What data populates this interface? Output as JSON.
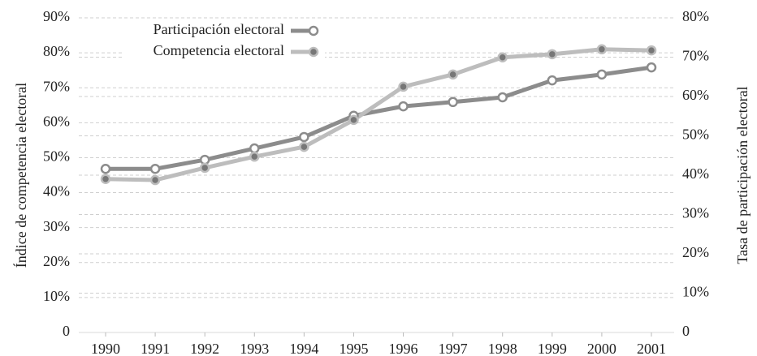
{
  "chart_data": {
    "type": "line",
    "ylabel": "Índice de competencia electoral",
    "y2label": "Tasa de participación electoral",
    "categories": [
      "1990",
      "1991",
      "1992",
      "1993",
      "1994",
      "1995",
      "1996",
      "1997",
      "1998",
      "1999",
      "2000",
      "2001"
    ],
    "series": [
      {
        "name": "Participación electoral",
        "color": "#8c8c8c",
        "marker": "open",
        "axis": "y2",
        "values": [
          41.6,
          41.6,
          43.9,
          46.8,
          49.7,
          55.1,
          57.5,
          58.6,
          59.8,
          64.1,
          65.6,
          67.4
        ]
      },
      {
        "name": "Competencia electoral",
        "color": "#bdbdbd",
        "marker": "filled",
        "axis": "y",
        "values": [
          43.9,
          43.6,
          47.1,
          50.3,
          53.1,
          60.8,
          70.3,
          73.8,
          78.7,
          79.6,
          81.0,
          80.7
        ]
      }
    ],
    "ylim": [
      0,
      90
    ],
    "yticks": [
      0,
      {
        "value": 10,
        "label": "10%"
      },
      {
        "value": 20,
        "label": "20%"
      },
      {
        "value": 30,
        "label": "30%"
      },
      {
        "value": 40,
        "label": "40%"
      },
      {
        "value": 50,
        "label": "50%"
      },
      {
        "value": 60,
        "label": "60%"
      },
      {
        "value": 70,
        "label": "70%"
      },
      {
        "value": 80,
        "label": "80%"
      },
      {
        "value": 90,
        "label": "90%"
      }
    ],
    "y2lim": [
      0,
      80
    ],
    "y2ticks": [
      0,
      {
        "value": 10,
        "label": "10%"
      },
      {
        "value": 20,
        "label": "20%"
      },
      {
        "value": 30,
        "label": "30%"
      },
      {
        "value": 40,
        "label": "40%"
      },
      {
        "value": 50,
        "label": "50%"
      },
      {
        "value": 60,
        "label": "60%"
      },
      {
        "value": 70,
        "label": "70%"
      },
      {
        "value": 80,
        "label": "80%"
      }
    ],
    "grid": true,
    "legend": "top-left"
  }
}
